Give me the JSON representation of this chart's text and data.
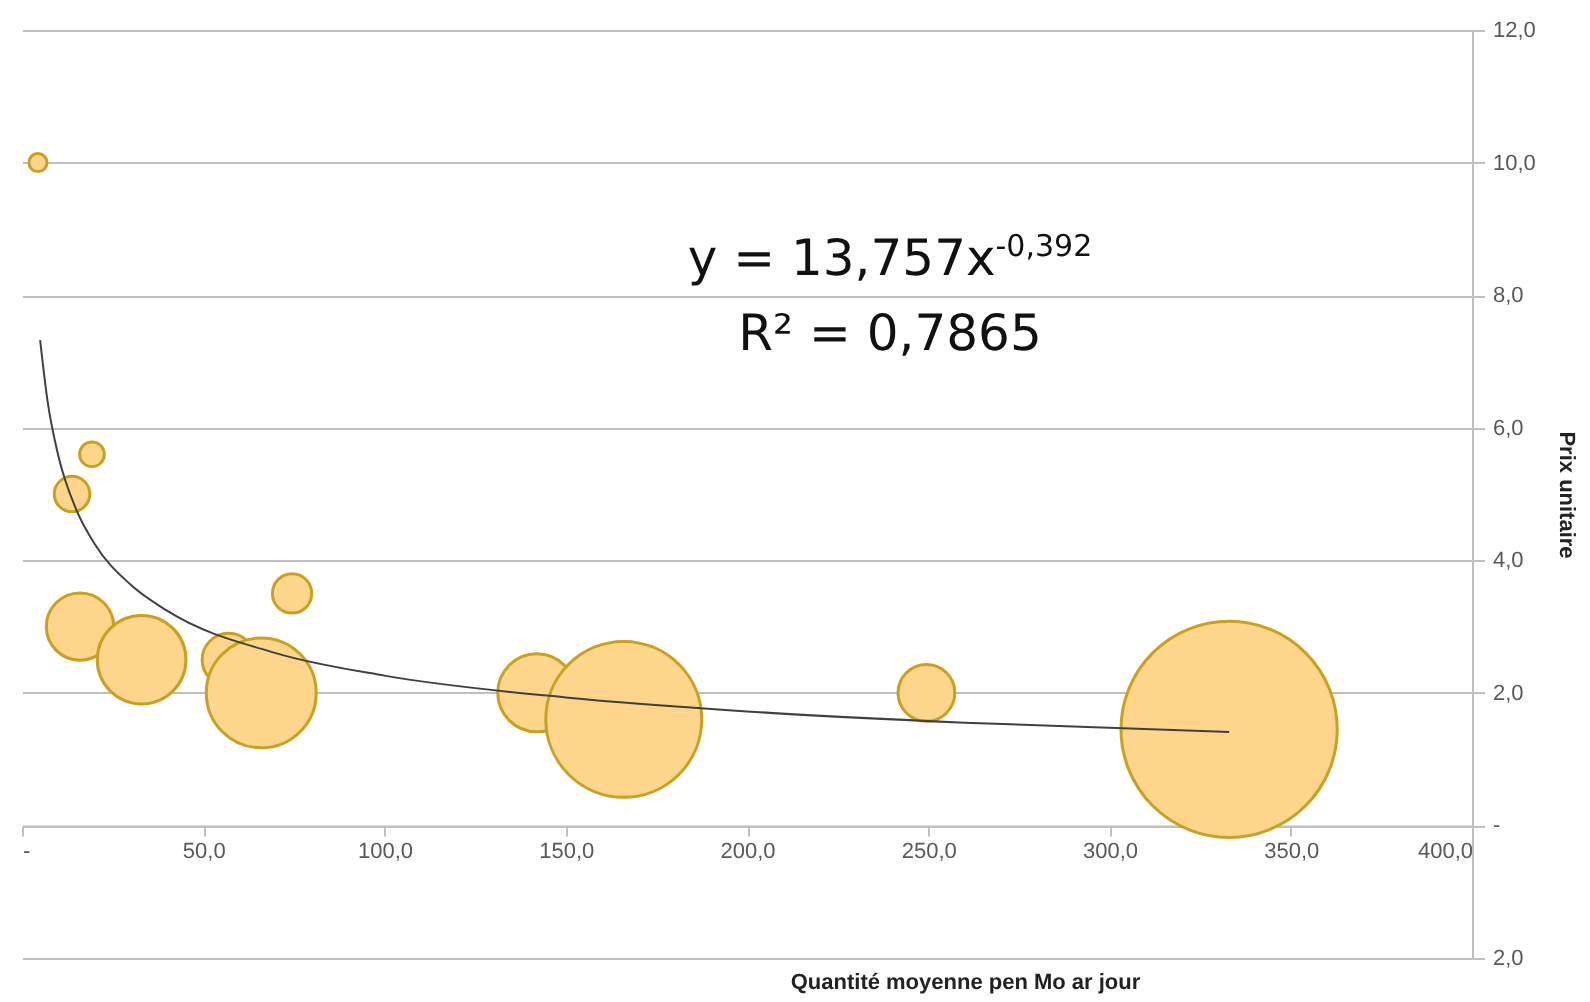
{
  "chart_data": {
    "type": "bubble",
    "xlabel": "Quantité moyenne pen Mo ar jour",
    "ylabel": "Prix unitaire",
    "xlim": [
      0,
      400
    ],
    "xticks": [
      {
        "value": 0,
        "label": "-"
      },
      {
        "value": 50,
        "label": "50,0"
      },
      {
        "value": 100,
        "label": "100,0"
      },
      {
        "value": 150,
        "label": "150,0"
      },
      {
        "value": 200,
        "label": "200,0"
      },
      {
        "value": 250,
        "label": "250,0"
      },
      {
        "value": 300,
        "label": "300,0"
      },
      {
        "value": 350,
        "label": "350,0"
      },
      {
        "value": 400,
        "label": "400,0"
      }
    ],
    "ylim": [
      -2,
      12
    ],
    "yticks": [
      {
        "value": -2,
        "label": "2,0"
      },
      {
        "value": 0,
        "label": "-"
      },
      {
        "value": 2,
        "label": "2,0"
      },
      {
        "value": 4,
        "label": "4,0"
      },
      {
        "value": 6,
        "label": "6,0"
      },
      {
        "value": 8,
        "label": "8,0"
      },
      {
        "value": 10,
        "label": "10,0"
      },
      {
        "value": 12,
        "label": "12,0"
      }
    ],
    "grid": "y",
    "series": [
      {
        "color": "#fdd68c",
        "x": [
          4.4,
          13.8,
          19.3,
          16,
          33,
          57,
          66,
          74.5,
          142,
          166,
          249.5,
          333
        ],
        "values": [
          10.0,
          5.0,
          5.6,
          3.0,
          2.5,
          2.5,
          2.0,
          3.5,
          2.0,
          1.6,
          2.0,
          1.45
        ],
        "sizes": [
          0.007,
          0.027,
          0.013,
          0.097,
          0.168,
          0.06,
          0.258,
          0.033,
          0.13,
          0.52,
          0.069,
          1
        ]
      },
      {
        "type": "line",
        "color": "#404040",
        "x": [
          5,
          7,
          10,
          15,
          20,
          30,
          40,
          70,
          100,
          150,
          200,
          260,
          333
        ],
        "values": [
          7.32,
          6.42,
          5.58,
          4.76,
          4.25,
          3.63,
          3.24,
          2.6,
          2.26,
          1.93,
          1.72,
          1.55,
          1.41
        ]
      }
    ],
    "annotations": [
      "y = 13,757x$^{-0,392}$",
      "R² = 0,7865"
    ]
  }
}
